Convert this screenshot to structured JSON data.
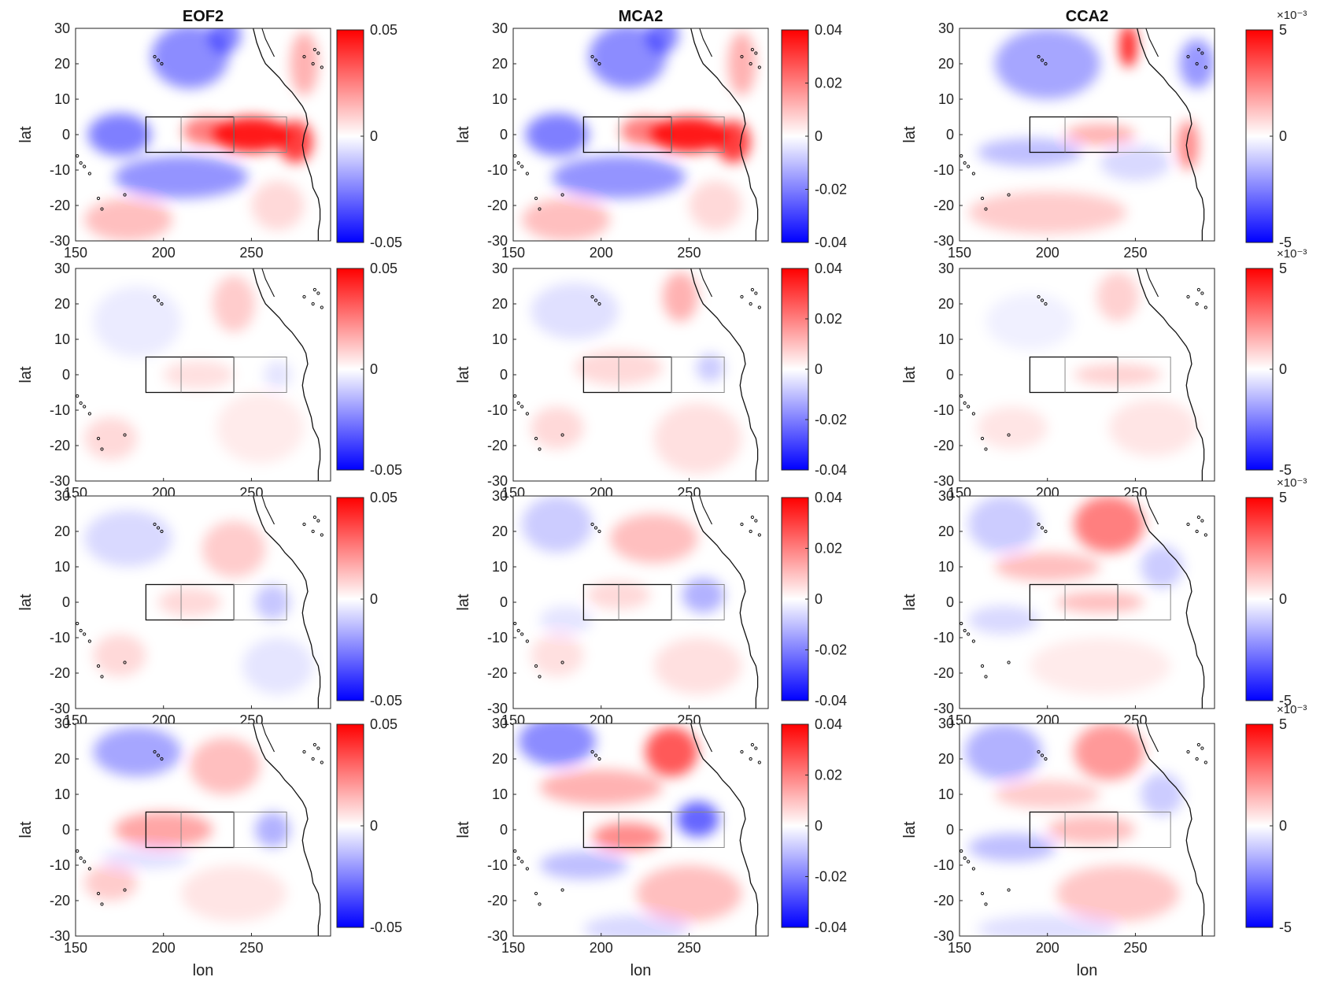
{
  "figure": {
    "column_titles": [
      "EOF2",
      "MCA2",
      "CCA2"
    ],
    "row_count": 4
  },
  "colors": {
    "positive": "#ff0000",
    "neutral": "#ffffff",
    "negative": "#0000ff",
    "coast": "#111111",
    "box": "#111111",
    "box_secondary": "#888888"
  },
  "chart_data": {
    "type": "heatmap",
    "layout": "4 rows x 3 columns of lat-lon maps with colorbars",
    "xlabel": "lon",
    "ylabel": "lat",
    "xlim": [
      150,
      295
    ],
    "ylim": [
      -30,
      30
    ],
    "xticks": [
      "150",
      "200",
      "250"
    ],
    "yticks": [
      "30",
      "20",
      "10",
      "0",
      "-10",
      "-20",
      "-30"
    ],
    "boxes": [
      {
        "lon": [
          190,
          240
        ],
        "lat": [
          -5,
          5
        ],
        "style": "solid",
        "name": ""
      },
      {
        "lon": [
          210,
          210
        ],
        "lat": [
          -5,
          5
        ],
        "style": "divider",
        "name": ""
      },
      {
        "lon": [
          240,
          270
        ],
        "lat": [
          -5,
          5
        ],
        "style": "light",
        "name": ""
      }
    ],
    "columns": [
      {
        "title": "EOF2",
        "clim": [
          -0.05,
          0.05
        ],
        "cbar_ticks": [
          "0.05",
          "0",
          "-0.05"
        ],
        "multiplier": ""
      },
      {
        "title": "MCA2",
        "clim": [
          -0.04,
          0.04
        ],
        "cbar_ticks": [
          "0.04",
          "0.02",
          "0",
          "-0.02",
          "-0.04"
        ],
        "multiplier": ""
      },
      {
        "title": "CCA2",
        "clim": [
          -5,
          5
        ],
        "cbar_ticks": [
          "5",
          "0",
          "-5"
        ],
        "multiplier": "×10⁻³"
      }
    ],
    "panels": [
      {
        "row": 1,
        "col": 1,
        "field": [
          {
            "lon": 250,
            "lat": 0,
            "sx": 22,
            "sy": 5,
            "a": 0.9
          },
          {
            "lon": 275,
            "lat": -2,
            "sx": 10,
            "sy": 6,
            "a": 0.75
          },
          {
            "lon": 225,
            "lat": 1,
            "sx": 14,
            "sy": 4,
            "a": 0.5
          },
          {
            "lon": 280,
            "lat": 20,
            "sx": 8,
            "sy": 9,
            "a": 0.3
          },
          {
            "lon": 215,
            "lat": 22,
            "sx": 22,
            "sy": 9,
            "a": -0.45
          },
          {
            "lon": 235,
            "lat": 28,
            "sx": 9,
            "sy": 5,
            "a": -0.5
          },
          {
            "lon": 175,
            "lat": 0,
            "sx": 18,
            "sy": 6,
            "a": -0.5
          },
          {
            "lon": 210,
            "lat": -12,
            "sx": 38,
            "sy": 6,
            "a": -0.42
          },
          {
            "lon": 180,
            "lat": -24,
            "sx": 25,
            "sy": 6,
            "a": 0.25
          },
          {
            "lon": 265,
            "lat": -20,
            "sx": 15,
            "sy": 7,
            "a": 0.15
          }
        ]
      },
      {
        "row": 1,
        "col": 2,
        "field": [
          {
            "lon": 250,
            "lat": 0,
            "sx": 22,
            "sy": 5,
            "a": 0.9
          },
          {
            "lon": 275,
            "lat": -2,
            "sx": 10,
            "sy": 6,
            "a": 0.75
          },
          {
            "lon": 225,
            "lat": 1,
            "sx": 14,
            "sy": 4,
            "a": 0.5
          },
          {
            "lon": 280,
            "lat": 20,
            "sx": 8,
            "sy": 9,
            "a": 0.3
          },
          {
            "lon": 215,
            "lat": 22,
            "sx": 22,
            "sy": 9,
            "a": -0.45
          },
          {
            "lon": 235,
            "lat": 28,
            "sx": 9,
            "sy": 5,
            "a": -0.5
          },
          {
            "lon": 175,
            "lat": 0,
            "sx": 18,
            "sy": 6,
            "a": -0.5
          },
          {
            "lon": 210,
            "lat": -12,
            "sx": 38,
            "sy": 6,
            "a": -0.42
          },
          {
            "lon": 180,
            "lat": -24,
            "sx": 25,
            "sy": 6,
            "a": 0.25
          },
          {
            "lon": 265,
            "lat": -20,
            "sx": 15,
            "sy": 7,
            "a": 0.15
          }
        ]
      },
      {
        "row": 1,
        "col": 3,
        "field": [
          {
            "lon": 246,
            "lat": 25,
            "sx": 5,
            "sy": 6,
            "a": 0.85
          },
          {
            "lon": 230,
            "lat": 0,
            "sx": 20,
            "sy": 3,
            "a": 0.3
          },
          {
            "lon": 280,
            "lat": -3,
            "sx": 6,
            "sy": 7,
            "a": 0.45
          },
          {
            "lon": 200,
            "lat": 20,
            "sx": 30,
            "sy": 10,
            "a": -0.35
          },
          {
            "lon": 285,
            "lat": 20,
            "sx": 10,
            "sy": 7,
            "a": -0.4
          },
          {
            "lon": 190,
            "lat": -5,
            "sx": 30,
            "sy": 4,
            "a": -0.25
          },
          {
            "lon": 200,
            "lat": -22,
            "sx": 45,
            "sy": 6,
            "a": 0.2
          },
          {
            "lon": 250,
            "lat": -8,
            "sx": 20,
            "sy": 5,
            "a": -0.15
          }
        ]
      },
      {
        "row": 2,
        "col": 1,
        "field": [
          {
            "lon": 240,
            "lat": 20,
            "sx": 12,
            "sy": 8,
            "a": 0.2
          },
          {
            "lon": 220,
            "lat": 0,
            "sx": 20,
            "sy": 4,
            "a": 0.12
          },
          {
            "lon": 170,
            "lat": -18,
            "sx": 15,
            "sy": 6,
            "a": 0.15
          },
          {
            "lon": 255,
            "lat": -15,
            "sx": 25,
            "sy": 10,
            "a": 0.08
          },
          {
            "lon": 185,
            "lat": 15,
            "sx": 25,
            "sy": 10,
            "a": -0.08
          },
          {
            "lon": 265,
            "lat": 0,
            "sx": 8,
            "sy": 4,
            "a": -0.1
          }
        ]
      },
      {
        "row": 2,
        "col": 2,
        "field": [
          {
            "lon": 245,
            "lat": 22,
            "sx": 10,
            "sy": 7,
            "a": 0.3
          },
          {
            "lon": 210,
            "lat": 2,
            "sx": 25,
            "sy": 5,
            "a": 0.15
          },
          {
            "lon": 175,
            "lat": -15,
            "sx": 15,
            "sy": 6,
            "a": 0.15
          },
          {
            "lon": 255,
            "lat": -18,
            "sx": 25,
            "sy": 10,
            "a": 0.12
          },
          {
            "lon": 185,
            "lat": 18,
            "sx": 25,
            "sy": 8,
            "a": -0.12
          },
          {
            "lon": 262,
            "lat": 2,
            "sx": 8,
            "sy": 4,
            "a": -0.2
          }
        ]
      },
      {
        "row": 2,
        "col": 3,
        "field": [
          {
            "lon": 240,
            "lat": 22,
            "sx": 12,
            "sy": 7,
            "a": 0.18
          },
          {
            "lon": 240,
            "lat": 0,
            "sx": 25,
            "sy": 3,
            "a": 0.18
          },
          {
            "lon": 180,
            "lat": -15,
            "sx": 20,
            "sy": 6,
            "a": 0.1
          },
          {
            "lon": 260,
            "lat": -15,
            "sx": 25,
            "sy": 8,
            "a": 0.1
          },
          {
            "lon": 190,
            "lat": 15,
            "sx": 25,
            "sy": 8,
            "a": -0.06
          }
        ]
      },
      {
        "row": 3,
        "col": 1,
        "field": [
          {
            "lon": 240,
            "lat": 15,
            "sx": 18,
            "sy": 8,
            "a": 0.2
          },
          {
            "lon": 215,
            "lat": 0,
            "sx": 18,
            "sy": 4,
            "a": 0.15
          },
          {
            "lon": 175,
            "lat": -15,
            "sx": 15,
            "sy": 6,
            "a": 0.15
          },
          {
            "lon": 180,
            "lat": 18,
            "sx": 25,
            "sy": 8,
            "a": -0.15
          },
          {
            "lon": 262,
            "lat": 0,
            "sx": 10,
            "sy": 5,
            "a": -0.22
          },
          {
            "lon": 265,
            "lat": -18,
            "sx": 20,
            "sy": 8,
            "a": -0.1
          }
        ]
      },
      {
        "row": 3,
        "col": 2,
        "field": [
          {
            "lon": 230,
            "lat": 18,
            "sx": 25,
            "sy": 7,
            "a": 0.25
          },
          {
            "lon": 210,
            "lat": 2,
            "sx": 18,
            "sy": 4,
            "a": 0.15
          },
          {
            "lon": 175,
            "lat": -15,
            "sx": 15,
            "sy": 6,
            "a": 0.12
          },
          {
            "lon": 255,
            "lat": -18,
            "sx": 25,
            "sy": 8,
            "a": 0.12
          },
          {
            "lon": 175,
            "lat": 22,
            "sx": 20,
            "sy": 8,
            "a": -0.2
          },
          {
            "lon": 258,
            "lat": 2,
            "sx": 12,
            "sy": 5,
            "a": -0.3
          },
          {
            "lon": 180,
            "lat": -5,
            "sx": 15,
            "sy": 4,
            "a": -0.1
          }
        ]
      },
      {
        "row": 3,
        "col": 3,
        "field": [
          {
            "lon": 235,
            "lat": 22,
            "sx": 20,
            "sy": 8,
            "a": 0.5
          },
          {
            "lon": 200,
            "lat": 10,
            "sx": 30,
            "sy": 4,
            "a": 0.25
          },
          {
            "lon": 230,
            "lat": 0,
            "sx": 25,
            "sy": 3,
            "a": 0.25
          },
          {
            "lon": 230,
            "lat": -18,
            "sx": 40,
            "sy": 8,
            "a": 0.08
          },
          {
            "lon": 175,
            "lat": 22,
            "sx": 20,
            "sy": 8,
            "a": -0.2
          },
          {
            "lon": 175,
            "lat": -5,
            "sx": 20,
            "sy": 4,
            "a": -0.15
          },
          {
            "lon": 265,
            "lat": 10,
            "sx": 12,
            "sy": 6,
            "a": -0.2
          }
        ]
      },
      {
        "row": 4,
        "col": 1,
        "field": [
          {
            "lon": 235,
            "lat": 18,
            "sx": 20,
            "sy": 8,
            "a": 0.25
          },
          {
            "lon": 200,
            "lat": 0,
            "sx": 28,
            "sy": 5,
            "a": 0.35
          },
          {
            "lon": 170,
            "lat": -15,
            "sx": 15,
            "sy": 5,
            "a": 0.2
          },
          {
            "lon": 240,
            "lat": -18,
            "sx": 30,
            "sy": 8,
            "a": 0.1
          },
          {
            "lon": 185,
            "lat": 22,
            "sx": 25,
            "sy": 7,
            "a": -0.35
          },
          {
            "lon": 262,
            "lat": 0,
            "sx": 10,
            "sy": 5,
            "a": -0.3
          },
          {
            "lon": 190,
            "lat": -8,
            "sx": 25,
            "sy": 3,
            "a": -0.12
          }
        ]
      },
      {
        "row": 4,
        "col": 2,
        "field": [
          {
            "lon": 240,
            "lat": 22,
            "sx": 15,
            "sy": 7,
            "a": 0.65
          },
          {
            "lon": 200,
            "lat": 12,
            "sx": 35,
            "sy": 5,
            "a": 0.3
          },
          {
            "lon": 215,
            "lat": -2,
            "sx": 20,
            "sy": 4,
            "a": 0.45
          },
          {
            "lon": 250,
            "lat": -18,
            "sx": 30,
            "sy": 8,
            "a": 0.25
          },
          {
            "lon": 175,
            "lat": 25,
            "sx": 22,
            "sy": 7,
            "a": -0.45
          },
          {
            "lon": 255,
            "lat": 3,
            "sx": 12,
            "sy": 5,
            "a": -0.6
          },
          {
            "lon": 190,
            "lat": -10,
            "sx": 25,
            "sy": 4,
            "a": -0.25
          },
          {
            "lon": 220,
            "lat": -28,
            "sx": 30,
            "sy": 4,
            "a": -0.15
          }
        ]
      },
      {
        "row": 4,
        "col": 3,
        "field": [
          {
            "lon": 235,
            "lat": 22,
            "sx": 20,
            "sy": 8,
            "a": 0.4
          },
          {
            "lon": 200,
            "lat": 10,
            "sx": 30,
            "sy": 4,
            "a": 0.2
          },
          {
            "lon": 225,
            "lat": 0,
            "sx": 25,
            "sy": 4,
            "a": 0.25
          },
          {
            "lon": 240,
            "lat": -18,
            "sx": 35,
            "sy": 8,
            "a": 0.22
          },
          {
            "lon": 175,
            "lat": 22,
            "sx": 22,
            "sy": 8,
            "a": -0.3
          },
          {
            "lon": 180,
            "lat": -5,
            "sx": 25,
            "sy": 4,
            "a": -0.25
          },
          {
            "lon": 265,
            "lat": 10,
            "sx": 12,
            "sy": 6,
            "a": -0.2
          },
          {
            "lon": 200,
            "lat": -28,
            "sx": 40,
            "sy": 4,
            "a": -0.12
          }
        ]
      }
    ]
  }
}
